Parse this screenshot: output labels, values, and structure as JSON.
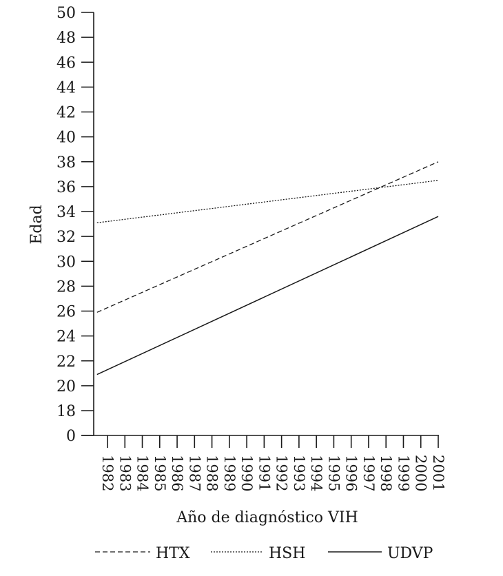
{
  "chart_data": {
    "type": "line",
    "title": "",
    "xlabel": "Año de diagnóstico VIH",
    "ylabel": "Edad",
    "x": [
      1982,
      1983,
      1984,
      1985,
      1986,
      1987,
      1988,
      1989,
      1990,
      1991,
      1992,
      1993,
      1994,
      1995,
      1996,
      1997,
      1998,
      1999,
      2000,
      2001
    ],
    "x_tick_labels": [
      "1982",
      "1983",
      "1984",
      "1985",
      "1986",
      "1987",
      "1988",
      "1989",
      "1990",
      "1991",
      "1992",
      "1993",
      "1994",
      "1995",
      "1996",
      "1997",
      "1998",
      "1999",
      "2000",
      "2001"
    ],
    "y_tick_labels": [
      "0",
      "18",
      "20",
      "22",
      "24",
      "26",
      "28",
      "30",
      "32",
      "34",
      "36",
      "38",
      "40",
      "42",
      "44",
      "46",
      "48",
      "50"
    ],
    "ylim": [
      0,
      50
    ],
    "y_axis_break": "0 to 18",
    "grid": false,
    "legend_placement": "bottom",
    "series": [
      {
        "name": "HTX",
        "style": "dashed",
        "x": [
          1981.4,
          2001
        ],
        "values": [
          25.9,
          38.0
        ]
      },
      {
        "name": "HSH",
        "style": "dotted",
        "x": [
          1981.4,
          2001
        ],
        "values": [
          33.1,
          36.5
        ]
      },
      {
        "name": "UDVP",
        "style": "solid",
        "x": [
          1981.4,
          2001
        ],
        "values": [
          20.9,
          33.6
        ]
      }
    ],
    "colors": {
      "line": "#1a1a1a",
      "axis": "#1a1a1a"
    }
  }
}
